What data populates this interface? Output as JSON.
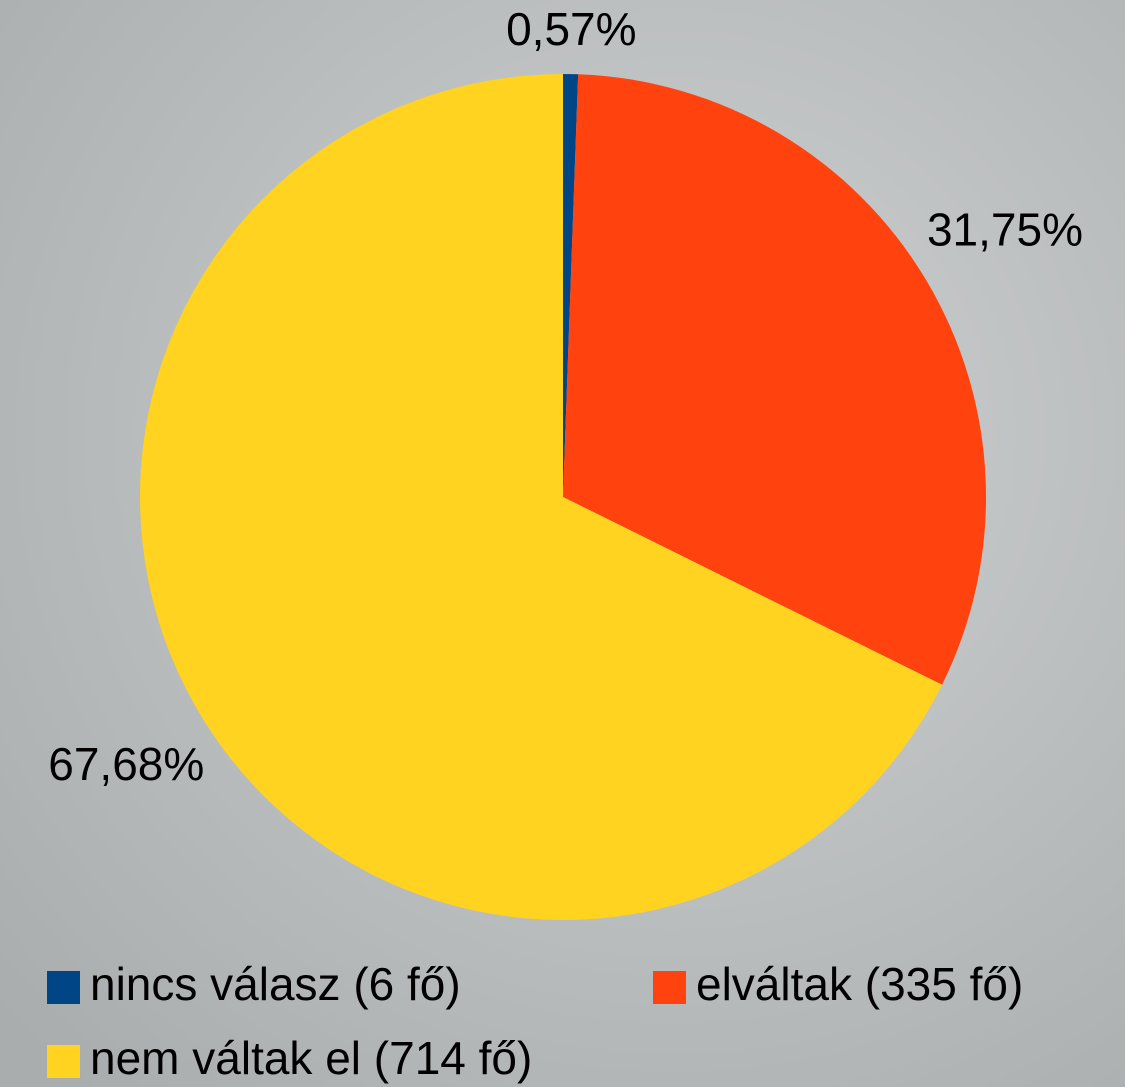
{
  "chart_data": {
    "type": "pie",
    "categories": [
      "nincs válasz (6 fő)",
      "elváltak (335 fő)",
      "nem váltak el (714 fő)"
    ],
    "values": [
      0.57,
      31.75,
      67.68
    ],
    "value_labels": [
      "0,57%",
      "31,75%",
      "67,68%"
    ],
    "colors": [
      "#004586",
      "#ff420e",
      "#ffd320"
    ]
  }
}
